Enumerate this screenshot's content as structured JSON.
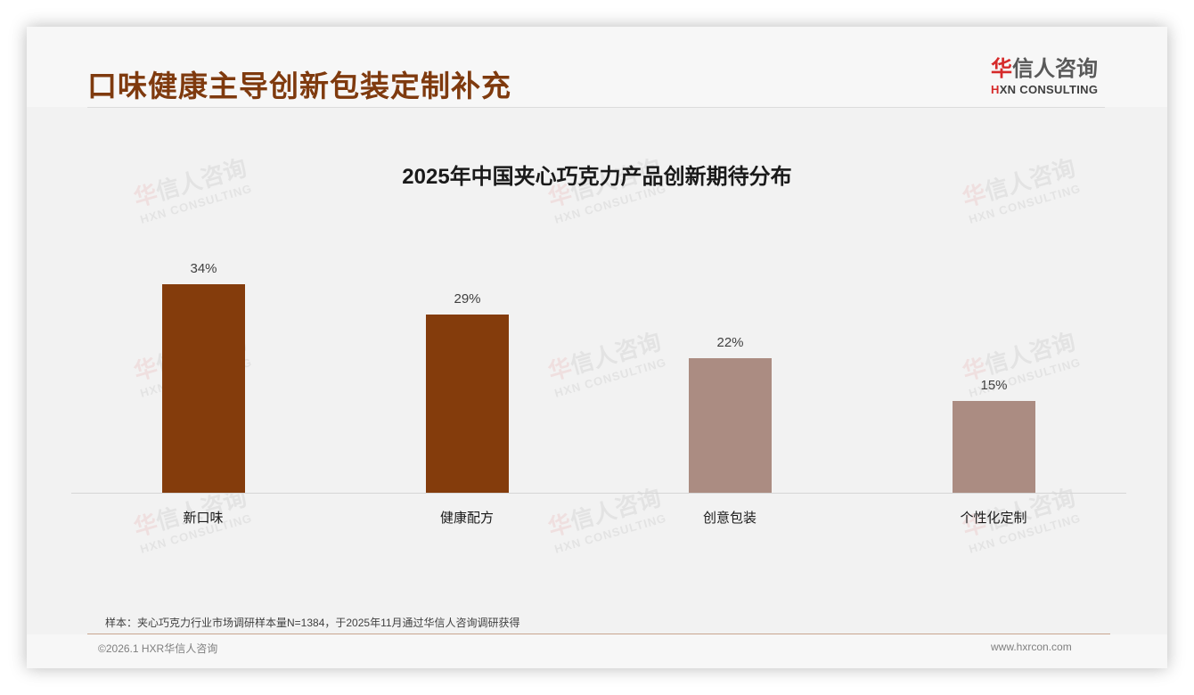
{
  "header": {
    "title": "口味健康主导创新包装定制补充",
    "logo": {
      "cn_accent": "华",
      "cn_rest": "信人咨询",
      "en_mark": "H",
      "en_rest": "XN CONSULTING"
    }
  },
  "watermark": {
    "cn_accent": "华",
    "cn_rest": "信人咨询",
    "en": "HXN CONSULTING"
  },
  "colors": {
    "title": "#7f3a0e",
    "bar_dark": "#843c0c",
    "bar_light": "#ab8c82",
    "logo_red": "#d62a2a"
  },
  "chart_data": {
    "type": "bar",
    "title": "2025年中国夹心巧克力产品创新期待分布",
    "categories": [
      "新口味",
      "健康配方",
      "创意包装",
      "个性化定制"
    ],
    "values": [
      34,
      29,
      22,
      15
    ],
    "value_labels": [
      "34%",
      "29%",
      "22%",
      "15%"
    ],
    "bar_colors": [
      "#843c0c",
      "#843c0c",
      "#ab8c82",
      "#ab8c82"
    ],
    "xlabel": "",
    "ylabel": "",
    "unit": "%",
    "ylim": [
      0,
      40
    ],
    "grid": false,
    "legend": null
  },
  "footer": {
    "source_note": "样本：夹心巧克力行业市场调研样本量N=1384，于2025年11月通过华信人咨询调研获得",
    "copyright": "©2026.1 HXR华信人咨询",
    "website": "www.hxrcon.com"
  }
}
